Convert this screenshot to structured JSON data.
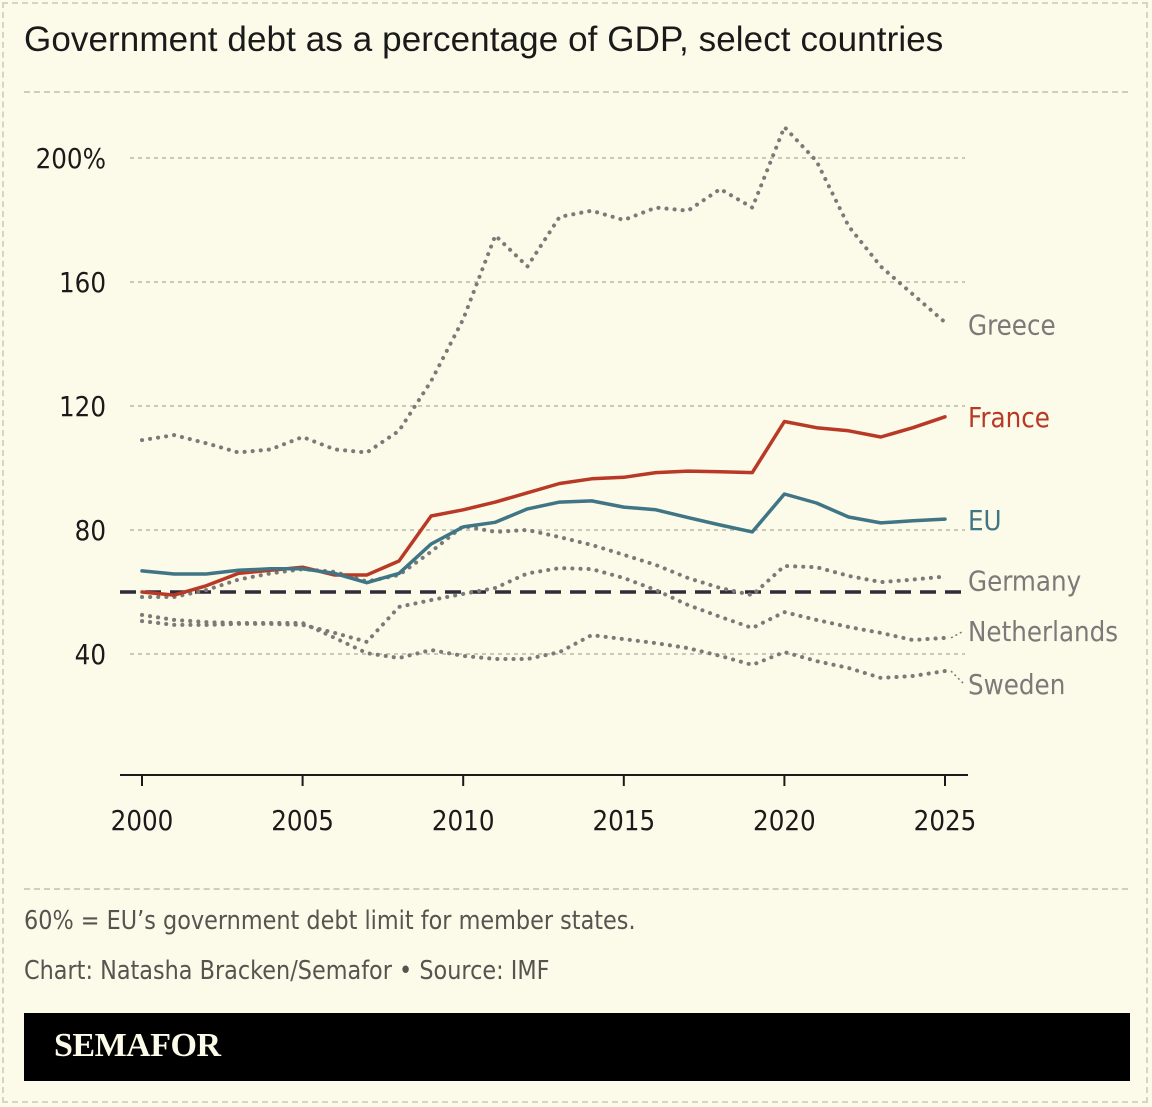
{
  "chart_data": {
    "type": "line",
    "title": "Government debt as a percentage of GDP, select countries",
    "xlabel": "",
    "ylabel": "",
    "x": [
      2000,
      2001,
      2002,
      2003,
      2004,
      2005,
      2006,
      2007,
      2008,
      2009,
      2010,
      2011,
      2012,
      2013,
      2014,
      2015,
      2016,
      2017,
      2018,
      2019,
      2020,
      2021,
      2022,
      2023,
      2024,
      2025
    ],
    "xlim": [
      2000,
      2025
    ],
    "ylim": [
      0,
      210
    ],
    "x_ticks": [
      2000,
      2005,
      2010,
      2015,
      2020,
      2025
    ],
    "x_tick_labels": [
      "2000",
      "2005",
      "2010",
      "2015",
      "2020",
      "2025"
    ],
    "y_ticks": [
      40,
      80,
      120,
      160,
      200
    ],
    "y_tick_labels": [
      "40",
      "80",
      "120",
      "160",
      "200%"
    ],
    "grid": "horizontal dotted",
    "legend": "direct labels at line ends (right)",
    "reference_line": {
      "value": 60,
      "style": "dashed",
      "color": "#2e2c38"
    },
    "series": [
      {
        "name": "Greece",
        "color": "#7a7a78",
        "style": "dotted",
        "values": [
          109,
          110.6,
          108,
          105,
          106,
          110,
          106,
          105,
          112,
          128,
          148,
          175,
          165,
          181,
          183,
          180,
          184,
          183,
          190,
          184,
          210,
          199,
          178,
          165,
          156,
          147
        ]
      },
      {
        "name": "France",
        "color": "#b83a26",
        "style": "solid",
        "values": [
          60,
          59,
          62,
          66,
          67,
          68,
          65.5,
          65.5,
          70,
          84.5,
          86.5,
          89,
          92,
          95,
          96.5,
          97,
          98.5,
          99,
          98.8,
          98.5,
          115,
          113,
          112,
          110,
          113,
          116.5
        ]
      },
      {
        "name": "EU",
        "color": "#3f7585",
        "style": "solid",
        "values": [
          66.8,
          65.8,
          65.8,
          67,
          67.5,
          67.5,
          66,
          63,
          66,
          75.5,
          81,
          82.5,
          86.8,
          89,
          89.4,
          87.4,
          86.5,
          84,
          81.6,
          79.4,
          91.6,
          88.7,
          84.2,
          82.3,
          83,
          83.5
        ]
      },
      {
        "name": "Germany",
        "color": "#7a7a78",
        "style": "dotted",
        "values": [
          58.4,
          58.4,
          60.6,
          64,
          66,
          67.4,
          66.5,
          63.4,
          65.5,
          73,
          81.3,
          79.4,
          80,
          77.7,
          75.2,
          72,
          68.7,
          64.5,
          61.3,
          59,
          68.4,
          68,
          65.2,
          63.2,
          64,
          65
        ]
      },
      {
        "name": "Netherlands",
        "color": "#7a7a78",
        "style": "dotted",
        "values": [
          50.6,
          49.4,
          49.4,
          49.7,
          49.7,
          49.4,
          46.8,
          43.9,
          55.2,
          57.4,
          59.4,
          61.3,
          66,
          67.7,
          67.4,
          64.5,
          60.6,
          55.8,
          52,
          48.4,
          53.5,
          51,
          48.7,
          46.8,
          44.5,
          45.2
        ]
      },
      {
        "name": "Sweden",
        "color": "#7a7a78",
        "style": "dotted",
        "values": [
          52.6,
          51,
          50.3,
          50,
          50,
          50,
          45.2,
          40.3,
          38.7,
          41.3,
          39.4,
          38.4,
          38.4,
          40.6,
          46.1,
          44.8,
          43.5,
          41.9,
          39.4,
          36.5,
          40.6,
          37.7,
          35.5,
          32.3,
          32.9,
          34.5
        ]
      }
    ]
  },
  "footer": {
    "note": "60% = EU’s government debt limit for member states.",
    "credit": "Chart: Natasha Bracken/Semafor • Source: IMF",
    "brand": "SEMAFOR"
  },
  "colors": {
    "background": "#fcfae9",
    "france": "#b83a26",
    "eu": "#3f7585",
    "other": "#7a7a78"
  }
}
